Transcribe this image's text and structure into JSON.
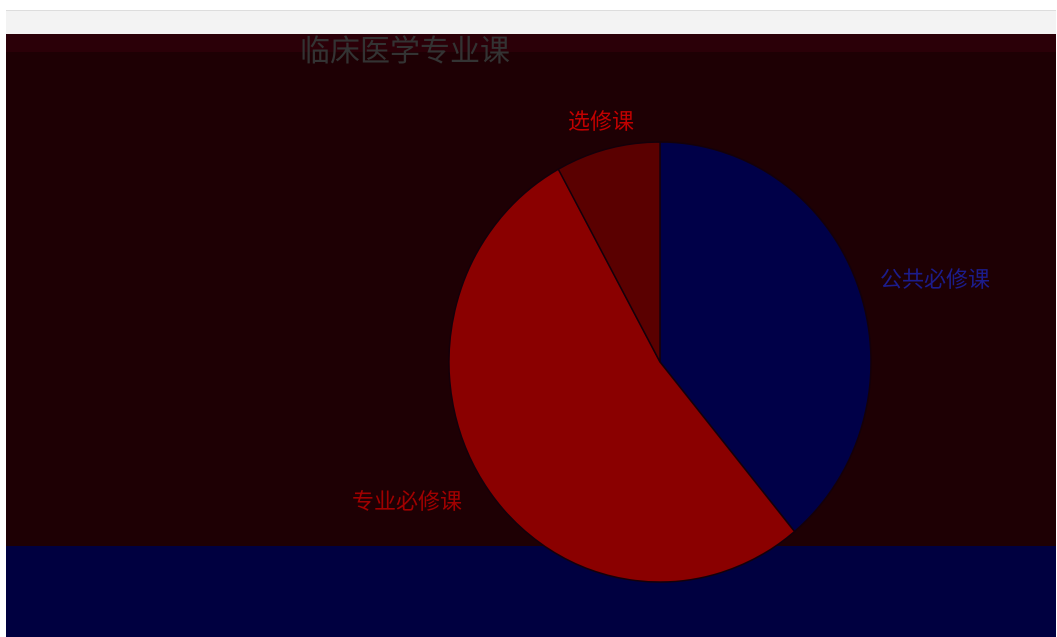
{
  "chart_data": {
    "type": "pie",
    "title": "临床医学专业课",
    "series": [
      {
        "values": [
          39,
          53,
          8
        ],
        "categories": [
          "公共必修课",
          "专业必修课",
          "选修课"
        ],
        "colors": [
          "#000048",
          "#8a0000",
          "#5a0000"
        ]
      }
    ],
    "labels": [
      "公共必修课",
      "专业必修课",
      "选修课"
    ],
    "label_colors": [
      "#1c1c8c",
      "#a00000",
      "#c00000"
    ]
  }
}
